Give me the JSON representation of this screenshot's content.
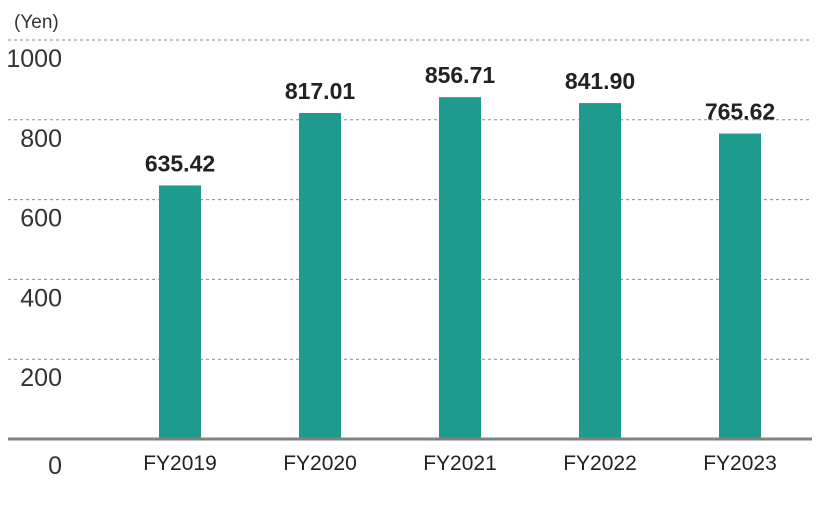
{
  "chart_data": {
    "type": "bar",
    "unit_label": "(Yen)",
    "categories": [
      "FY2019",
      "FY2020",
      "FY2021",
      "FY2022",
      "FY2023"
    ],
    "values": [
      635.42,
      817.01,
      856.71,
      841.9,
      765.62
    ],
    "value_labels": [
      "635.42",
      "817.01",
      "856.71",
      "841.90",
      "765.62"
    ],
    "y_ticks": [
      "0",
      "200",
      "400",
      "600",
      "800",
      "1000"
    ],
    "ylim": [
      0,
      1000
    ],
    "grid": true,
    "bar_color": "#1f9a8f"
  }
}
